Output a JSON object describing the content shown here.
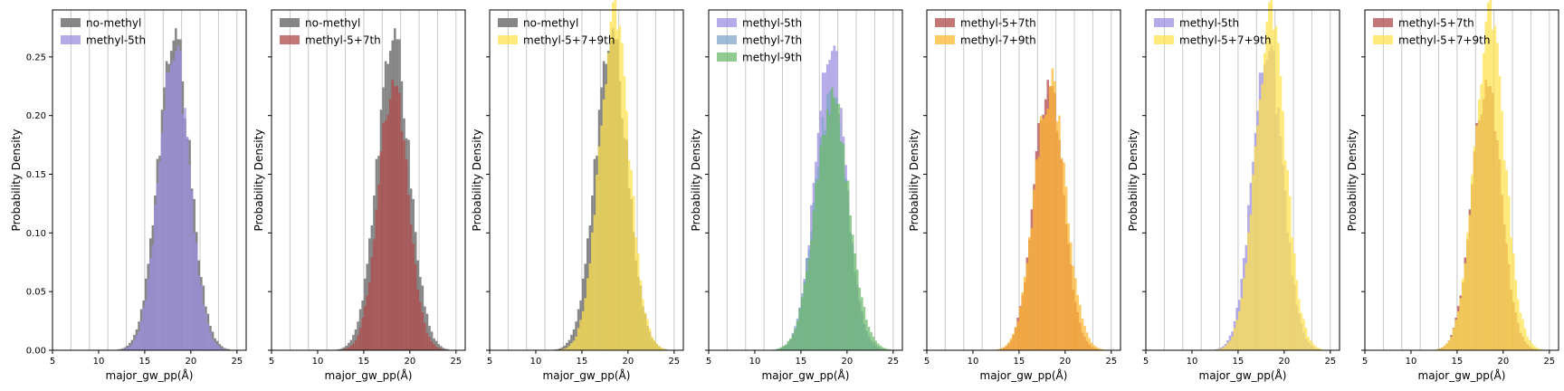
{
  "chart_data": {
    "type": "histogram",
    "panel_count": 7,
    "shared_y": true,
    "xlabel": "major_gw_pp(Å)",
    "ylabel": "Probability Density",
    "xlim": [
      5,
      26
    ],
    "ylim": [
      0,
      0.29
    ],
    "x_ticks": [
      5,
      10,
      15,
      20,
      25
    ],
    "y_ticks": [
      "0.00",
      "0.05",
      "0.10",
      "0.15",
      "0.20",
      "0.25"
    ],
    "vertical_gridlines": [
      7,
      9,
      11,
      13,
      15,
      17,
      19,
      21,
      23,
      25
    ],
    "bin_width": 0.25,
    "legend_position": "top-left",
    "series_colors": {
      "no-methyl": "#808080",
      "methyl-5th": "#9b8fe0",
      "methyl-7th": "#80a6c8",
      "methyl-9th": "#6dba6d",
      "methyl-5+7th": "#b04a4a",
      "methyl-7+9th": "#ffb733",
      "methyl-5+7+9th": "#ffe14d"
    },
    "series_alpha": {
      "no-methyl": 0.95,
      "methyl-5th": 0.75,
      "methyl-7th": 0.75,
      "methyl-9th": 0.75,
      "methyl-5+7th": 0.75,
      "methyl-7+9th": 0.75,
      "methyl-5+7+9th": 0.75
    },
    "distributions": {
      "no-methyl": {
        "mean": 18.2,
        "sd": 1.75,
        "peak": 0.265,
        "peak_at": 18.6
      },
      "methyl-5th": {
        "mean": 18.2,
        "sd": 1.65,
        "peak": 0.255,
        "peak_at": 18.6
      },
      "methyl-7th": {
        "mean": 18.2,
        "sd": 1.75,
        "peak": 0.215,
        "peak_at": 18.6
      },
      "methyl-9th": {
        "mean": 18.4,
        "sd": 1.85,
        "peak": 0.21,
        "peak_at": 18.9
      },
      "methyl-5+7th": {
        "mean": 18.2,
        "sd": 1.6,
        "peak": 0.225,
        "peak_at": 18.4
      },
      "methyl-7+9th": {
        "mean": 18.4,
        "sd": 1.7,
        "peak": 0.225,
        "peak_at": 18.6
      },
      "methyl-5+7+9th": {
        "mean": 18.5,
        "sd": 1.65,
        "peak": 0.28,
        "peak_at": 18.4
      }
    },
    "panels": [
      {
        "legend": [
          "no-methyl",
          "methyl-5th"
        ]
      },
      {
        "legend": [
          "no-methyl",
          "methyl-5+7th"
        ]
      },
      {
        "legend": [
          "no-methyl",
          "methyl-5+7+9th"
        ]
      },
      {
        "legend": [
          "methyl-5th",
          "methyl-7th",
          "methyl-9th"
        ]
      },
      {
        "legend": [
          "methyl-5+7th",
          "methyl-7+9th"
        ]
      },
      {
        "legend": [
          "methyl-5th",
          "methyl-5+7+9th"
        ]
      },
      {
        "legend": [
          "methyl-5+7th",
          "methyl-5+7+9th"
        ]
      }
    ]
  }
}
